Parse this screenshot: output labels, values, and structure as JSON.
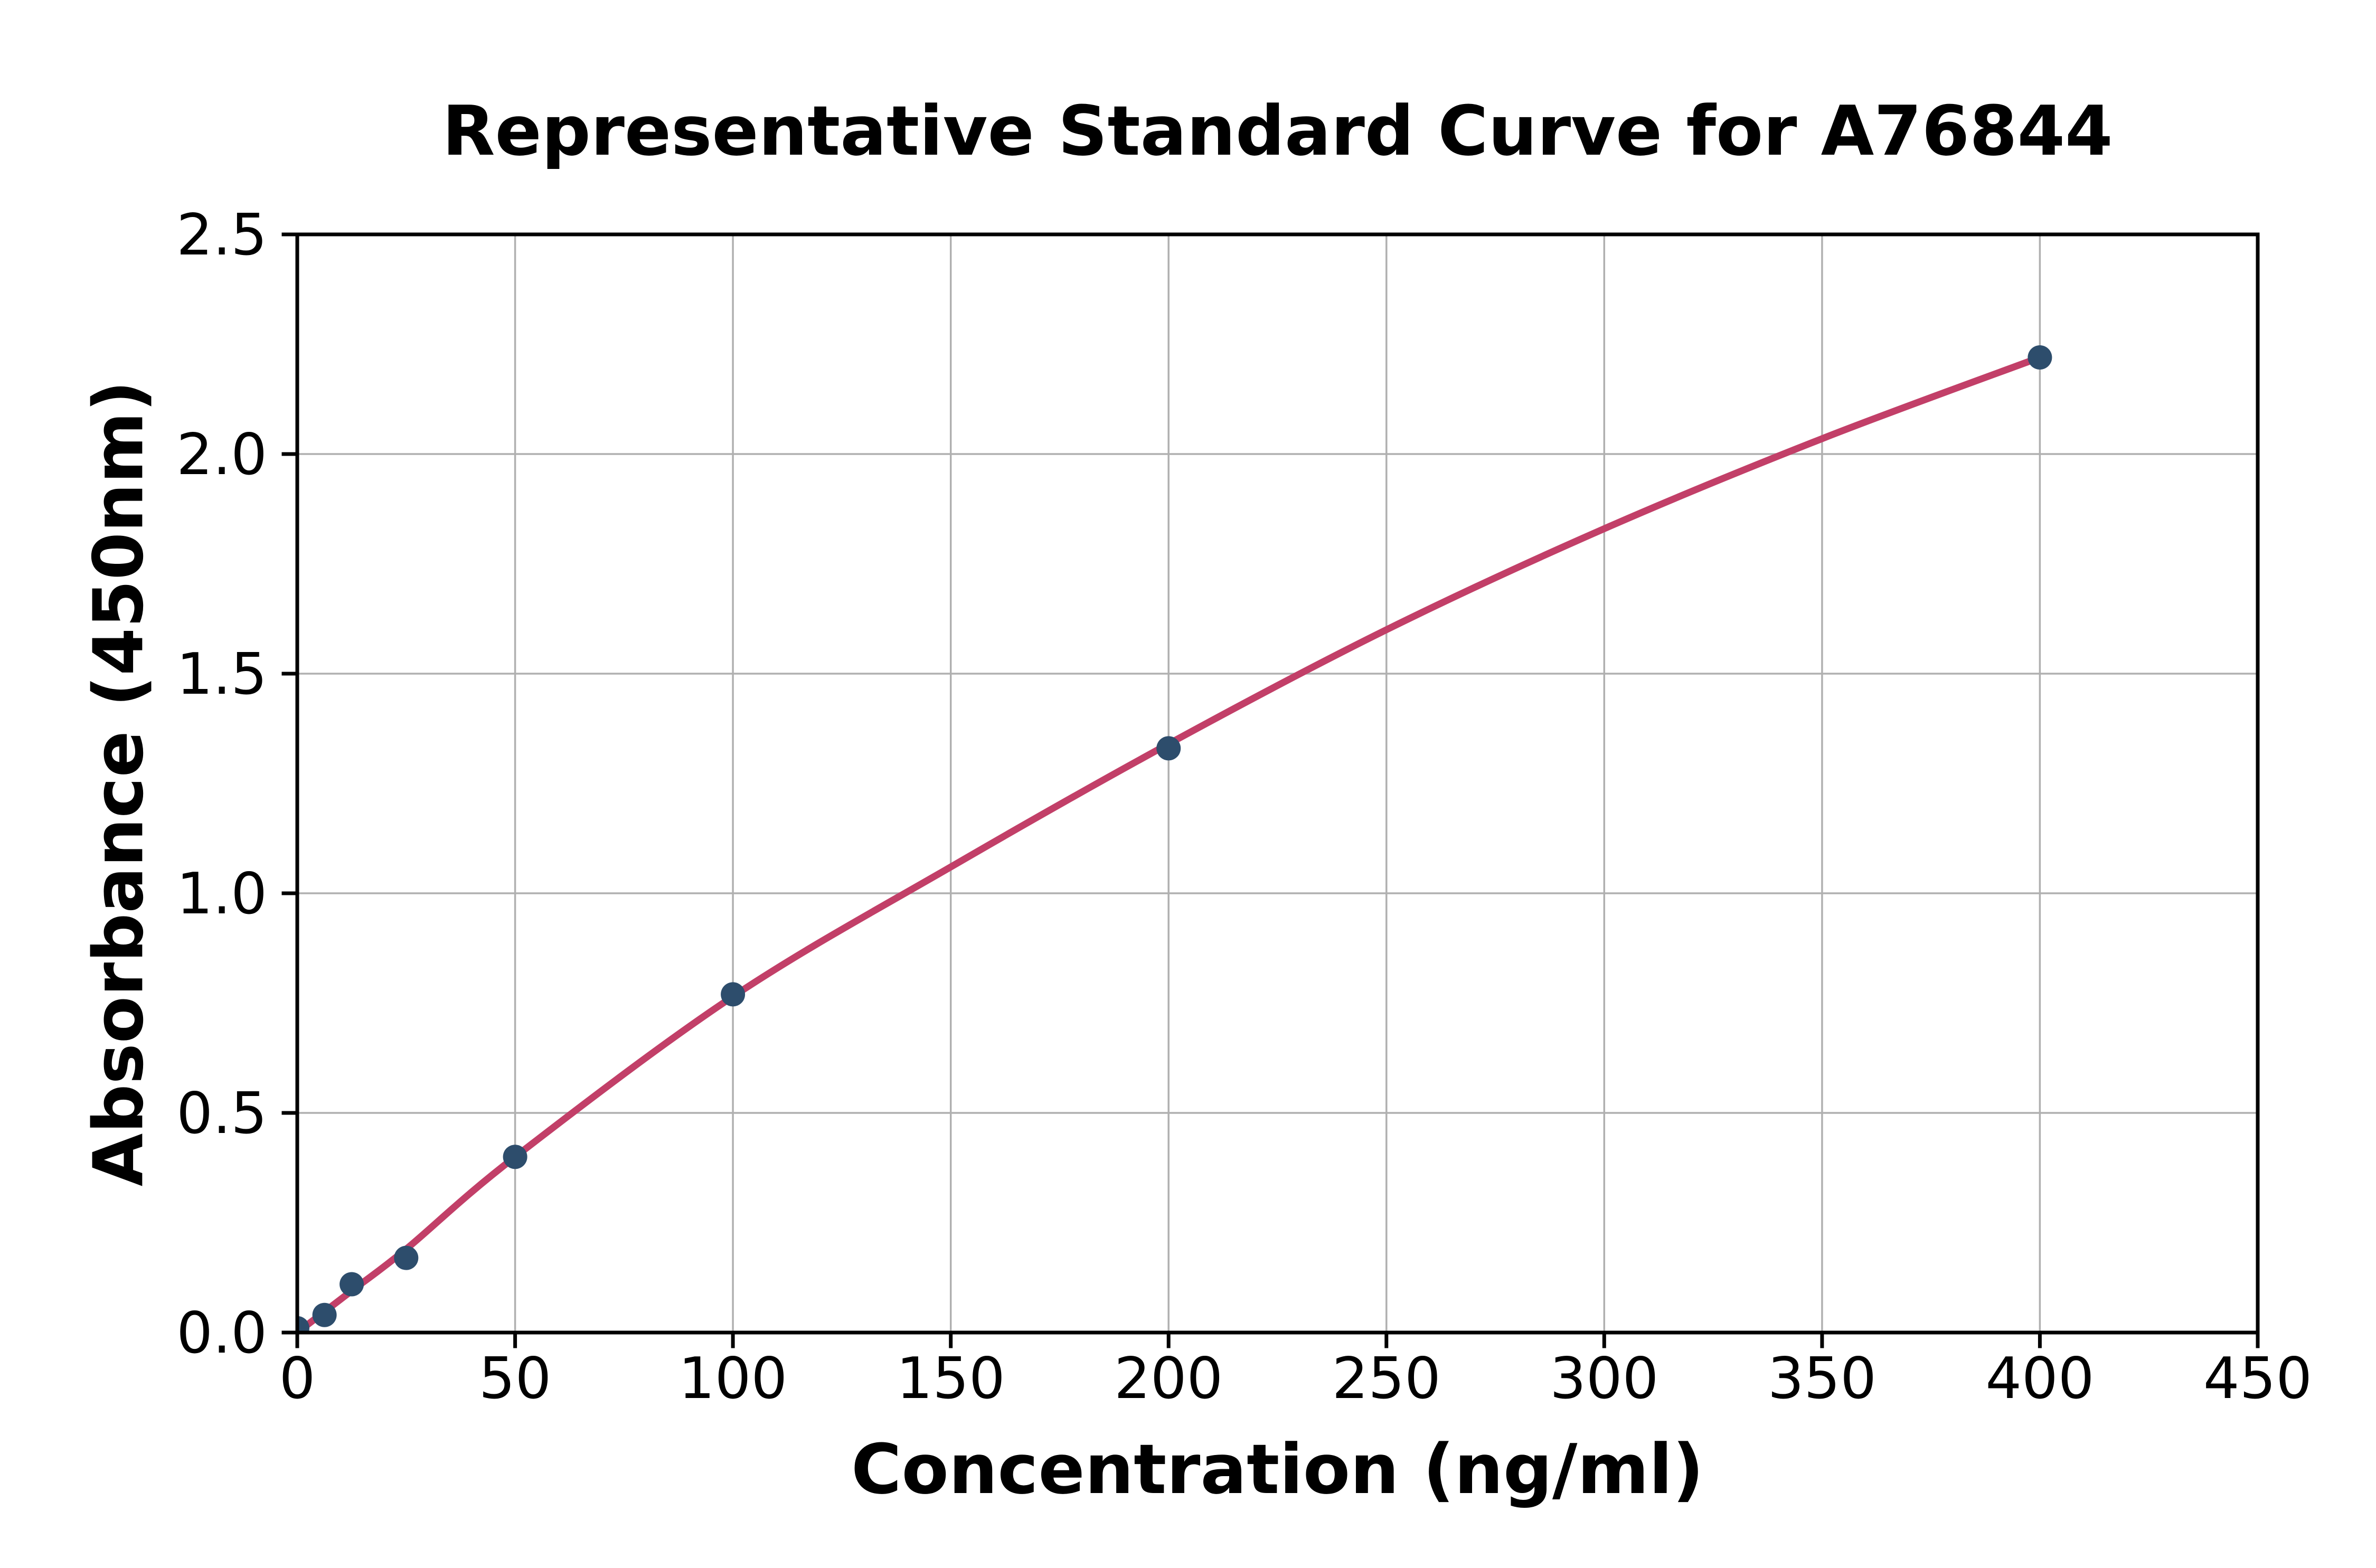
{
  "chart_data": {
    "type": "scatter",
    "title": "Representative Standard Curve for A76844",
    "xlabel": "Concentration (ng/ml)",
    "ylabel": "Absorbance (450nm)",
    "xlim": [
      0,
      450
    ],
    "ylim": [
      0,
      2.5
    ],
    "x_ticks": [
      0,
      50,
      100,
      150,
      200,
      250,
      300,
      350,
      400,
      450
    ],
    "x_tick_labels": [
      "0",
      "50",
      "100",
      "150",
      "200",
      "250",
      "300",
      "350",
      "400",
      "450"
    ],
    "y_ticks": [
      0,
      0.5,
      1.0,
      1.5,
      2.0,
      2.5
    ],
    "y_tick_labels": [
      "0.0",
      "0.5",
      "1.0",
      "1.5",
      "2.0",
      "2.5"
    ],
    "grid": true,
    "legend": false,
    "series": [
      {
        "name": "standard-points",
        "type": "scatter",
        "x": [
          0,
          6.25,
          12.5,
          25,
          50,
          100,
          200,
          400
        ],
        "y": [
          0.01,
          0.04,
          0.11,
          0.17,
          0.4,
          0.77,
          1.33,
          2.22
        ]
      },
      {
        "name": "fitted-curve",
        "type": "line",
        "x": [
          0,
          12.5,
          25,
          50,
          100,
          150,
          200,
          250,
          300,
          350,
          400
        ],
        "y": [
          0.0,
          0.095,
          0.19,
          0.4,
          0.765,
          1.06,
          1.34,
          1.6,
          1.83,
          2.035,
          2.22
        ]
      }
    ],
    "colors": {
      "curve": "#c23f68",
      "points": "#2d4d6c",
      "grid": "#b0b0b0",
      "axes": "#000000",
      "text": "#000000",
      "background": "#ffffff"
    }
  }
}
